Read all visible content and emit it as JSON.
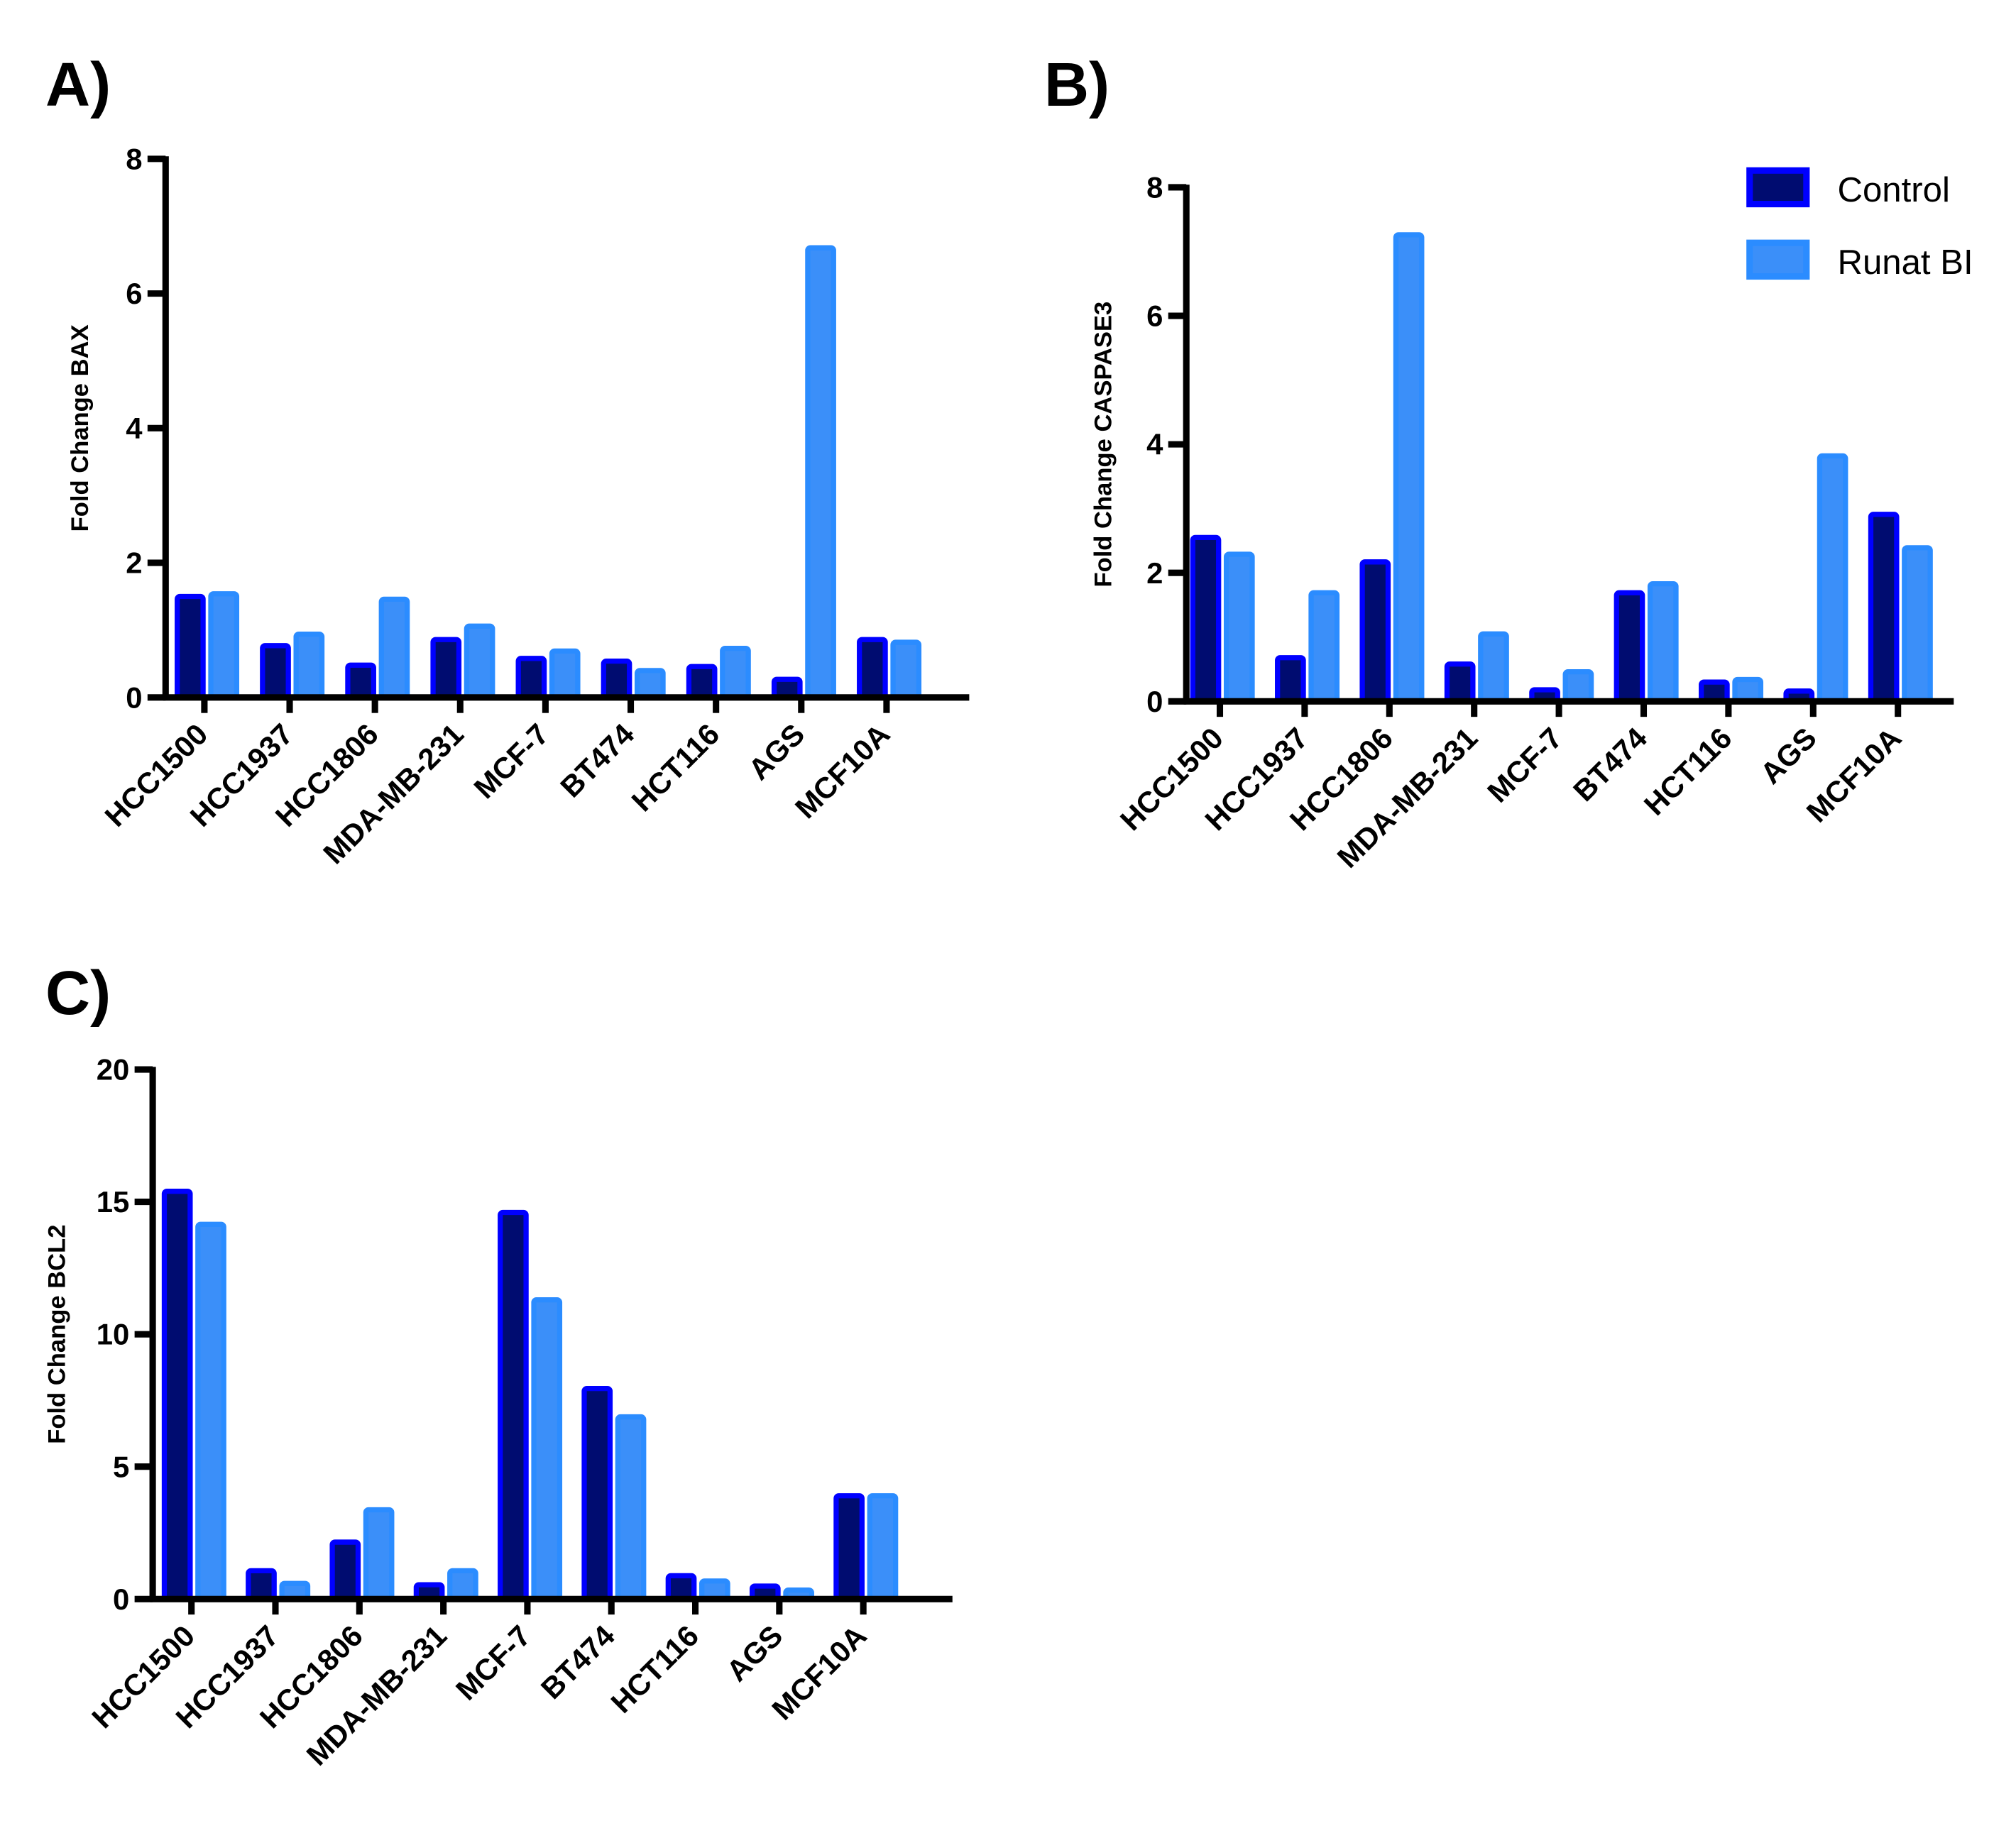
{
  "colors": {
    "control_border": "#0000ff",
    "control_fill": "#000c70",
    "runat_border": "#2b8cff",
    "runat_fill": "#3b8ff9"
  },
  "legend": {
    "placement": "top-right",
    "items": [
      "Control",
      "Runat BI"
    ]
  },
  "chart_data": [
    {
      "type": "bar",
      "panel": "A)",
      "ylabel": "Fold Change BAX",
      "ylim": [
        0,
        8
      ],
      "yticks": [
        0,
        2,
        4,
        6,
        8
      ],
      "categories": [
        "HCC1500",
        "HCC1937",
        "HCC1806",
        "MDA-MB-231",
        "MCF-7",
        "BT474",
        "HCT116",
        "AGS",
        "MCF10A"
      ],
      "series": [
        {
          "name": "Control",
          "values": [
            1.5,
            0.77,
            0.48,
            0.86,
            0.58,
            0.54,
            0.46,
            0.27,
            0.86
          ]
        },
        {
          "name": "Runat BI",
          "values": [
            1.54,
            0.94,
            1.46,
            1.06,
            0.69,
            0.4,
            0.73,
            6.68,
            0.82
          ]
        }
      ]
    },
    {
      "type": "bar",
      "panel": "B)",
      "ylabel": "Fold Change CASPASE3",
      "ylim": [
        0,
        8
      ],
      "yticks": [
        0,
        2,
        4,
        6,
        8
      ],
      "categories": [
        "HCC1500",
        "HCC1937",
        "HCC1806",
        "MDA-MB-231",
        "MCF-7",
        "BT474",
        "HCT116",
        "AGS",
        "MCF10A"
      ],
      "series": [
        {
          "name": "Control",
          "values": [
            2.55,
            0.68,
            2.17,
            0.58,
            0.18,
            1.69,
            0.3,
            0.16,
            2.91
          ]
        },
        {
          "name": "Runat BI",
          "values": [
            2.29,
            1.69,
            7.26,
            1.05,
            0.46,
            1.83,
            0.34,
            3.82,
            2.39
          ]
        }
      ]
    },
    {
      "type": "bar",
      "panel": "C)",
      "ylabel": "Fold Change BCL2",
      "ylim": [
        0,
        20
      ],
      "yticks": [
        0,
        5,
        10,
        15,
        20
      ],
      "categories": [
        "HCC1500",
        "HCC1937",
        "HCC1806",
        "MDA-MB-231",
        "MCF-7",
        "BT474",
        "HCT116",
        "AGS",
        "MCF10A"
      ],
      "series": [
        {
          "name": "Control",
          "values": [
            15.4,
            1.07,
            2.15,
            0.54,
            14.6,
            7.95,
            0.88,
            0.49,
            3.9
          ]
        },
        {
          "name": "Runat BI",
          "values": [
            14.15,
            0.59,
            3.37,
            1.07,
            11.3,
            6.88,
            0.68,
            0.34,
            3.9
          ]
        }
      ]
    }
  ]
}
